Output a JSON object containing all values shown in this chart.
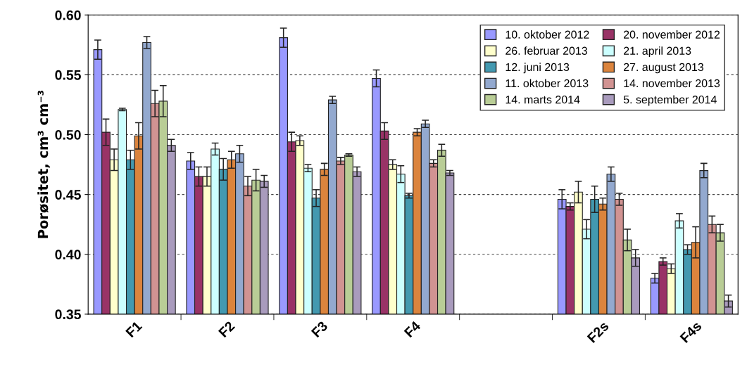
{
  "chart_data": {
    "type": "bar",
    "ylabel": "Porøsitet, cm³ cm⁻³",
    "categories": [
      "F1",
      "F2",
      "F3",
      "F4",
      null,
      "F2s",
      "F4s"
    ],
    "ylim": [
      0.35,
      0.6
    ],
    "yticks": [
      {
        "value": 0.35,
        "label": "0.35"
      },
      {
        "value": 0.4,
        "label": "0.40"
      },
      {
        "value": 0.45,
        "label": "0.45"
      },
      {
        "value": 0.5,
        "label": "0.50"
      },
      {
        "value": 0.55,
        "label": "0.55"
      },
      {
        "value": 0.6,
        "label": "0.60"
      }
    ],
    "grid": "y",
    "legend": "top right",
    "series": [
      {
        "name": "10. oktober 2012",
        "color": "#9999ff",
        "values": [
          0.571,
          0.478,
          0.581,
          0.547,
          null,
          0.446,
          0.38
        ],
        "errors": [
          0.008,
          0.007,
          0.008,
          0.007,
          null,
          0.008,
          0.004
        ]
      },
      {
        "name": "20. november 2012",
        "color": "#993366",
        "values": [
          0.502,
          0.465,
          0.494,
          0.503,
          null,
          0.44,
          0.394
        ],
        "errors": [
          0.011,
          0.008,
          0.008,
          0.007,
          null,
          0.003,
          0.003
        ]
      },
      {
        "name": "26. februar 2013",
        "color": "#ffffcc",
        "values": [
          0.479,
          0.465,
          0.495,
          0.475,
          null,
          0.452,
          0.388
        ],
        "errors": [
          0.009,
          0.008,
          0.004,
          0.004,
          null,
          0.009,
          0.004
        ]
      },
      {
        "name": "21. april 2013",
        "color": "#ccffff",
        "values": [
          0.521,
          0.488,
          0.472,
          0.467,
          null,
          0.421,
          0.428
        ],
        "errors": [
          0.001,
          0.005,
          0.003,
          0.007,
          null,
          0.008,
          0.006
        ]
      },
      {
        "name": "12. juni 2013",
        "color": "#4399b0",
        "values": [
          0.479,
          0.471,
          0.447,
          0.449,
          null,
          0.446,
          0.404
        ],
        "errors": [
          0.008,
          0.009,
          0.007,
          0.002,
          null,
          0.011,
          0.004
        ]
      },
      {
        "name": "27. august 2013",
        "color": "#db843d",
        "values": [
          0.499,
          0.479,
          0.471,
          0.502,
          null,
          0.442,
          0.41
        ],
        "errors": [
          0.011,
          0.007,
          0.005,
          0.003,
          null,
          0.005,
          0.013
        ]
      },
      {
        "name": "11. oktober 2013",
        "color": "#93a9cf",
        "values": [
          0.577,
          0.484,
          0.529,
          0.509,
          null,
          0.467,
          0.47
        ],
        "errors": [
          0.005,
          0.007,
          0.003,
          0.003,
          null,
          0.006,
          0.006
        ]
      },
      {
        "name": "14. november 2013",
        "color": "#d19392",
        "values": [
          0.526,
          0.457,
          0.478,
          0.476,
          null,
          0.446,
          0.425
        ],
        "errors": [
          0.011,
          0.008,
          0.003,
          0.003,
          null,
          0.005,
          0.007
        ]
      },
      {
        "name": "14. marts 2014",
        "color": "#b9cd96",
        "values": [
          0.528,
          0.462,
          0.483,
          0.487,
          null,
          0.412,
          0.418
        ],
        "errors": [
          0.013,
          0.009,
          0.001,
          0.005,
          null,
          0.009,
          0.007
        ]
      },
      {
        "name": "5. september 2014",
        "color": "#a99bbd",
        "values": [
          0.491,
          0.461,
          0.469,
          0.468,
          null,
          0.397,
          0.361
        ],
        "errors": [
          0.005,
          0.005,
          0.004,
          0.002,
          null,
          0.007,
          0.005
        ]
      }
    ]
  }
}
